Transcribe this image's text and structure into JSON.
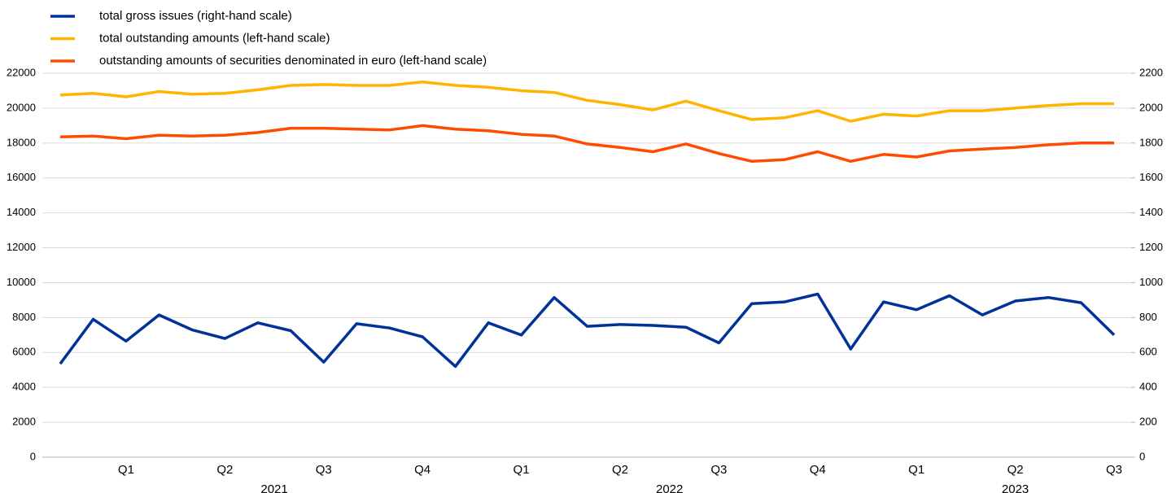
{
  "chart_data": {
    "type": "line",
    "categories": [
      null,
      null,
      "Q1",
      null,
      null,
      "Q2",
      null,
      null,
      "Q3",
      null,
      null,
      "Q4",
      null,
      null,
      "Q1",
      null,
      null,
      "Q2",
      null,
      null,
      "Q3",
      null,
      null,
      "Q4",
      null,
      null,
      "Q1",
      null,
      null,
      "Q2",
      null,
      null,
      "Q3"
    ],
    "years": [
      "2021",
      "2022",
      "2023"
    ],
    "series": [
      {
        "name": "total gross issues (right-hand scale)",
        "color": "#003299",
        "axis": "y2",
        "values": [
          535,
          790,
          665,
          815,
          730,
          680,
          770,
          725,
          545,
          765,
          740,
          690,
          520,
          770,
          700,
          915,
          750,
          760,
          755,
          745,
          655,
          880,
          890,
          935,
          620,
          890,
          845,
          925,
          815,
          895,
          915,
          885,
          700
        ]
      },
      {
        "name": "total outstanding amounts (left-hand scale)",
        "color": "#ffb400",
        "values": [
          20750,
          20850,
          20650,
          20950,
          20800,
          20850,
          21050,
          21300,
          21350,
          21300,
          21300,
          21500,
          21300,
          21200,
          21000,
          20900,
          20450,
          20200,
          19900,
          20400,
          19850,
          19350,
          19450,
          19850,
          19250,
          19650,
          19550,
          19850,
          19850,
          20000,
          20150,
          20250,
          20250
        ]
      },
      {
        "name": "outstanding amounts of securities denominated in euro (left-hand scale)",
        "color": "#ff4b00",
        "values": [
          18350,
          18400,
          18250,
          18450,
          18400,
          18450,
          18600,
          18850,
          18850,
          18800,
          18750,
          19000,
          18800,
          18700,
          18500,
          18400,
          17950,
          17750,
          17500,
          17950,
          17400,
          16950,
          17050,
          17500,
          16950,
          17350,
          17200,
          17550,
          17650,
          17750,
          17900,
          18000,
          18000
        ]
      }
    ],
    "ylim": [
      0,
      22000
    ],
    "yticks": [
      0,
      2000,
      4000,
      6000,
      8000,
      10000,
      12000,
      14000,
      16000,
      18000,
      20000,
      22000
    ],
    "y2lim": [
      0,
      2200
    ],
    "y2ticks": [
      0,
      200,
      400,
      600,
      800,
      1000,
      1200,
      1400,
      1600,
      1800,
      2000,
      2200
    ],
    "grid": true,
    "legend": "top-left"
  }
}
